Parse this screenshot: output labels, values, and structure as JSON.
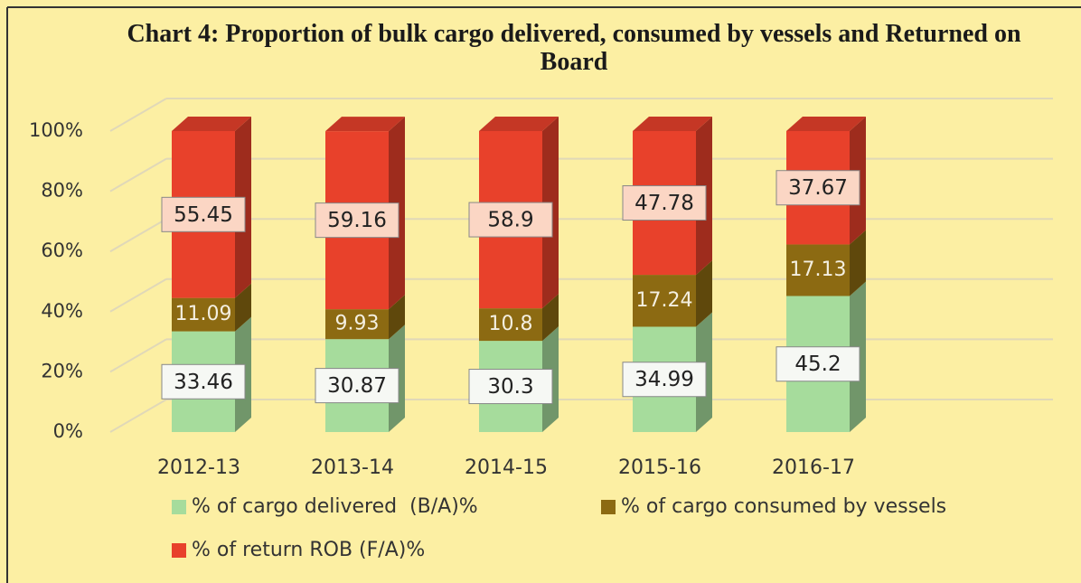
{
  "chart_data": {
    "type": "bar",
    "stacked": true,
    "title": "Chart 4: Proportion of bulk cargo delivered, consumed by vessels and Returned on Board",
    "categories": [
      "2012-13",
      "2013-14",
      "2014-15",
      "2015-16",
      "2016-17"
    ],
    "series": [
      {
        "name": "% of cargo delivered  (B/A)%",
        "color": "#a6dc9c",
        "values": [
          33.46,
          30.87,
          30.3,
          34.99,
          45.2
        ]
      },
      {
        "name": "% of cargo consumed by vessels",
        "color": "#8c6a12",
        "values": [
          11.09,
          9.93,
          10.8,
          17.24,
          17.13
        ]
      },
      {
        "name": "% of return ROB (F/A)%",
        "color": "#e8412b",
        "values": [
          55.45,
          59.16,
          58.9,
          47.78,
          37.67
        ]
      }
    ],
    "ylim": [
      0,
      100
    ],
    "yticks": [
      {
        "value": 0,
        "label": "0%"
      },
      {
        "value": 20,
        "label": "20%"
      },
      {
        "value": 40,
        "label": "40%"
      },
      {
        "value": 60,
        "label": "60%"
      },
      {
        "value": 80,
        "label": "80%"
      },
      {
        "value": 100,
        "label": "100%"
      }
    ],
    "grid": true
  }
}
